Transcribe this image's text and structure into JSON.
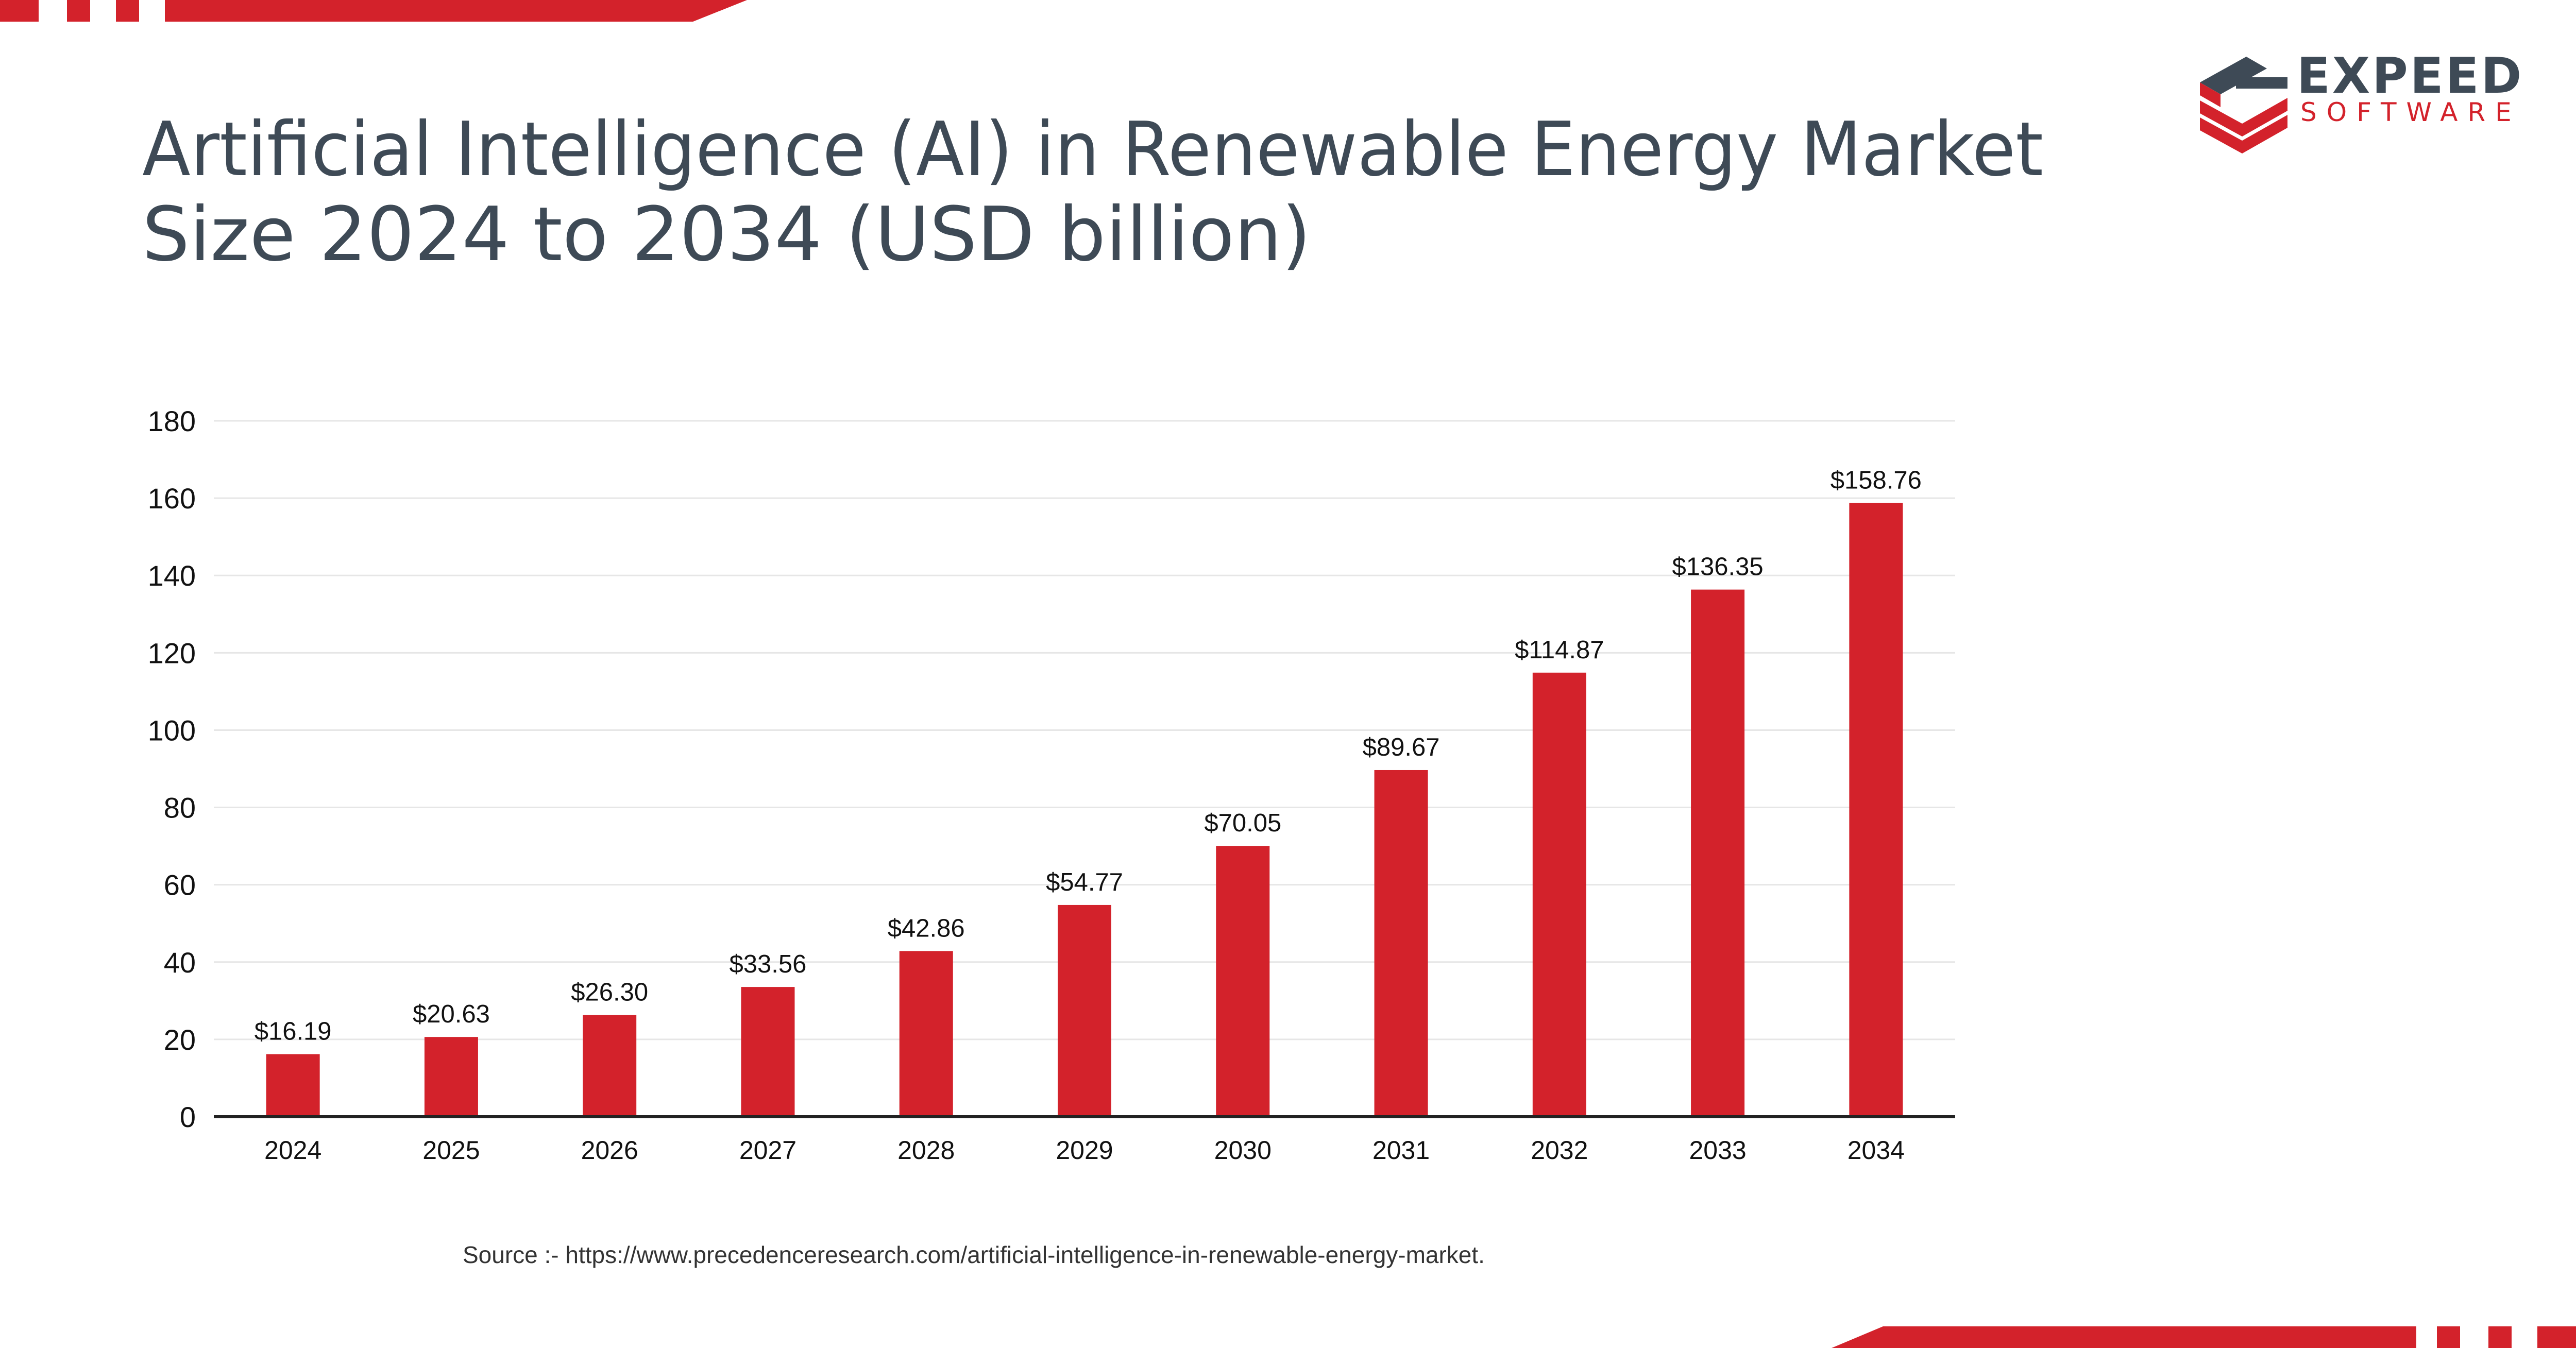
{
  "brand": {
    "name": "EXPEED",
    "tagline": "SOFTWARE",
    "accent_color": "#d3222b",
    "dark_color": "#3e4a56"
  },
  "header": {
    "title_line1": "Artificial Intelligence (AI) in Renewable Energy Market",
    "title_line2": "Size 2024 to 2034 (USD billion)"
  },
  "chart_data": {
    "type": "bar",
    "title": "Artificial Intelligence (AI) in Renewable Energy Market Size 2024 to 2034 (USD billion)",
    "categories": [
      "2024",
      "2025",
      "2026",
      "2027",
      "2028",
      "2029",
      "2030",
      "2031",
      "2032",
      "2033",
      "2034"
    ],
    "values": [
      16.19,
      20.63,
      26.3,
      33.56,
      42.86,
      54.77,
      70.05,
      89.67,
      114.87,
      136.35,
      158.76
    ],
    "value_labels": [
      "$16.19",
      "$20.63",
      "$26.30",
      "$33.56",
      "$42.86",
      "$54.77",
      "$70.05",
      "$89.67",
      "$114.87",
      "$136.35",
      "$158.76"
    ],
    "yticks": [
      "0",
      "20",
      "40",
      "60",
      "80",
      "100",
      "120",
      "140",
      "160",
      "180"
    ],
    "ylim": [
      0,
      180
    ],
    "xlabel": "",
    "ylabel": "",
    "grid": true,
    "legend": "none",
    "bar_color": "#d3222b"
  },
  "footer": {
    "source": "Source :- https://www.precedenceresearch.com/artificial-intelligence-in-renewable-energy-market."
  }
}
